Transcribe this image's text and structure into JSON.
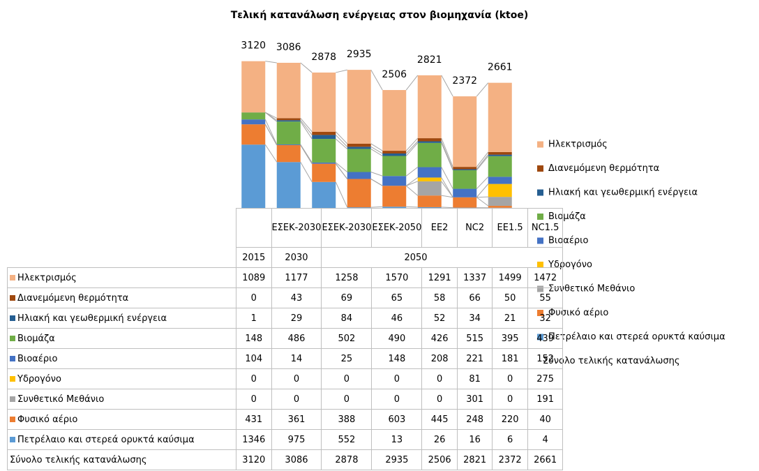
{
  "chart_data": {
    "type": "stacked_bar",
    "title": "Τελική κατανάλωση ενέργειας στον βιομηχανία (ktoe)",
    "categories": [
      null,
      "ΕΣΕΚ-2030",
      "ΕΣΕΚ-2030",
      "ΕΣΕΚ-2050",
      "EE2",
      "NC2",
      "EE1.5",
      "NC1.5"
    ],
    "group_labels": [
      "2015",
      "2030",
      "2050"
    ],
    "series": [
      {
        "name": "Ηλεκτρισμός",
        "color": "#f4b183",
        "values": [
          1089,
          1177,
          1258,
          1570,
          1291,
          1337,
          1499,
          1472
        ]
      },
      {
        "name": "Διανεμόμενη θερμότητα",
        "color": "#9e480e",
        "values": [
          0,
          43,
          69,
          65,
          58,
          66,
          50,
          55
        ]
      },
      {
        "name": "Ηλιακή και γεωθερμική  ενέργεια",
        "color": "#255e91",
        "values": [
          1,
          29,
          84,
          46,
          52,
          34,
          21,
          32
        ]
      },
      {
        "name": "Βιομάζα",
        "color": "#70ad47",
        "values": [
          148,
          486,
          502,
          490,
          426,
          515,
          395,
          439
        ]
      },
      {
        "name": "Βιοαέριο",
        "color": "#4472c4",
        "values": [
          104,
          14,
          25,
          148,
          208,
          221,
          181,
          152
        ]
      },
      {
        "name": "Υδρογόνο",
        "color": "#ffc000",
        "values": [
          0,
          0,
          0,
          0,
          0,
          81,
          0,
          275
        ]
      },
      {
        "name": "Συνθετικό Μεθάνιο",
        "color": "#a5a5a5",
        "values": [
          0,
          0,
          0,
          0,
          0,
          301,
          0,
          191
        ]
      },
      {
        "name": "Φυσικό αέριο",
        "color": "#ed7d31",
        "values": [
          431,
          361,
          388,
          603,
          445,
          248,
          220,
          40
        ]
      },
      {
        "name": "Πετρέλαιο και στερεά ορυκτά καύσιμα",
        "color": "#5b9bd5",
        "values": [
          1346,
          975,
          552,
          13,
          26,
          16,
          6,
          4
        ]
      }
    ],
    "totals": {
      "name": "Σύνολο τελικής κατανάλωσης",
      "values": [
        3120,
        3086,
        2878,
        2935,
        2506,
        2821,
        2372,
        2661
      ]
    },
    "ylim": [
      0,
      3500
    ]
  }
}
